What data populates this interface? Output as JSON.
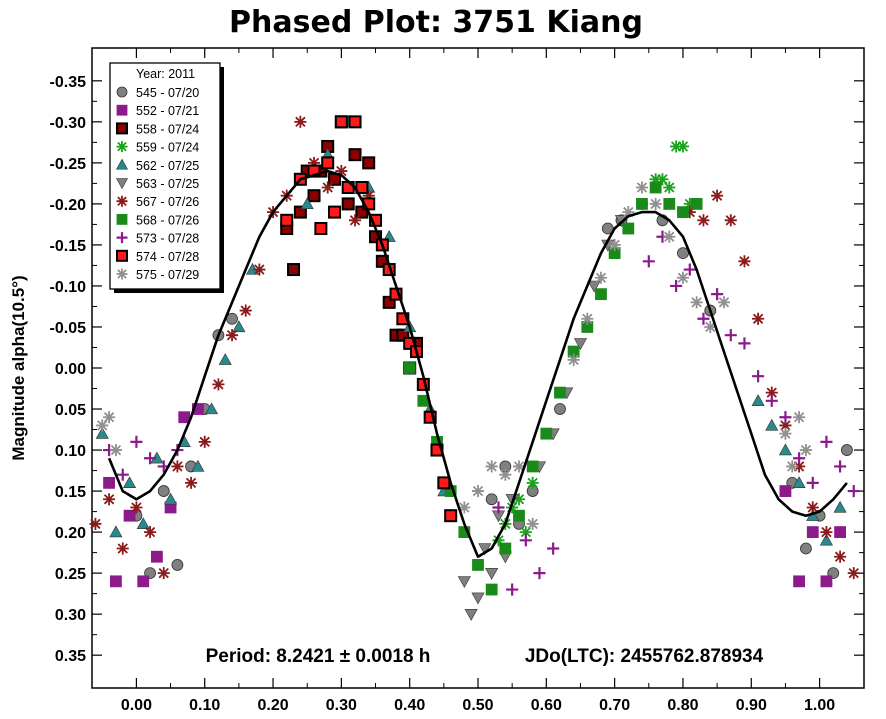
{
  "chart_data": {
    "type": "scatter",
    "title": "Phased Plot: 3751 Kiang",
    "ylabel": "Magnitude alpha(10.5°)",
    "xlabel": "",
    "xlim": [
      -0.065,
      1.065
    ],
    "ylim": [
      0.39,
      -0.39
    ],
    "y_inverted": true,
    "x_ticks": [
      "0.00",
      "0.10",
      "0.20",
      "0.30",
      "0.40",
      "0.50",
      "0.60",
      "0.70",
      "0.80",
      "0.90",
      "1.00"
    ],
    "x_tick_values": [
      0,
      0.1,
      0.2,
      0.3,
      0.4,
      0.5,
      0.6,
      0.7,
      0.8,
      0.9,
      1.0
    ],
    "y_ticks": [
      "-0.35",
      "-0.30",
      "-0.25",
      "-0.20",
      "-0.15",
      "-0.10",
      "-0.05",
      "0.00",
      "0.05",
      "0.10",
      "0.15",
      "0.20",
      "0.25",
      "0.30",
      "0.35"
    ],
    "y_tick_values": [
      -0.35,
      -0.3,
      -0.25,
      -0.2,
      -0.15,
      -0.1,
      -0.05,
      0,
      0.05,
      0.1,
      0.15,
      0.2,
      0.25,
      0.3,
      0.35
    ],
    "legend_title": "Year: 2011",
    "legend_position": "top-left",
    "period_text": "Period: 8.2421 ± 0.0018 h",
    "epoch_text": "JDo(LTC): 2455762.878934",
    "series": [
      {
        "name": "545 - 07/20",
        "marker": "circle",
        "color": "#808080",
        "x": [
          0.0,
          0.02,
          0.04,
          0.06,
          0.08,
          0.1,
          0.12,
          0.14,
          0.52,
          0.54,
          0.56,
          0.58,
          0.62,
          0.64,
          0.69,
          0.71,
          0.74,
          0.77,
          0.8,
          0.84,
          0.96,
          0.98,
          1.0,
          1.02,
          1.04
        ],
        "y": [
          0.18,
          0.25,
          0.15,
          0.24,
          0.12,
          0.05,
          -0.04,
          -0.06,
          0.16,
          0.12,
          0.19,
          0.15,
          0.05,
          -0.02,
          -0.17,
          -0.18,
          -0.2,
          -0.18,
          -0.14,
          -0.07,
          0.14,
          0.22,
          0.18,
          0.25,
          0.1
        ]
      },
      {
        "name": "552 - 07/21",
        "marker": "square",
        "color": "#8b1a8b",
        "x": [
          -0.04,
          -0.03,
          -0.01,
          0.01,
          0.03,
          0.05,
          0.07,
          0.09,
          0.95,
          0.97,
          0.99,
          1.01,
          1.03
        ],
        "y": [
          0.14,
          0.26,
          0.18,
          0.26,
          0.23,
          0.17,
          0.06,
          0.05,
          0.15,
          0.26,
          0.2,
          0.26,
          0.2
        ]
      },
      {
        "name": "558 - 07/24",
        "marker": "square",
        "color": "#000000",
        "fill": "#8b0000",
        "x": [
          0.22,
          0.23,
          0.24,
          0.25,
          0.26,
          0.27,
          0.28,
          0.29,
          0.3,
          0.31,
          0.32,
          0.33,
          0.34,
          0.35,
          0.36,
          0.37,
          0.38,
          0.39,
          0.4,
          0.41
        ],
        "y": [
          -0.17,
          -0.12,
          -0.19,
          -0.24,
          -0.21,
          -0.24,
          -0.27,
          -0.23,
          -0.3,
          -0.2,
          -0.26,
          -0.19,
          -0.25,
          -0.16,
          -0.13,
          -0.08,
          -0.04,
          -0.04,
          0.0,
          -0.03
        ]
      },
      {
        "name": "559 - 07/24",
        "marker": "asterisk",
        "color": "#1aa31a",
        "x": [
          0.53,
          0.54,
          0.55,
          0.56,
          0.57,
          0.58,
          0.76,
          0.77,
          0.78,
          0.79,
          0.8,
          0.81
        ],
        "y": [
          0.21,
          0.19,
          0.17,
          0.16,
          0.2,
          0.14,
          -0.23,
          -0.23,
          -0.22,
          -0.27,
          -0.27,
          -0.2
        ]
      },
      {
        "name": "562 - 07/25",
        "marker": "triangle-up",
        "color": "#2a8a8a",
        "x": [
          -0.05,
          -0.03,
          -0.01,
          0.01,
          0.03,
          0.05,
          0.07,
          0.09,
          0.11,
          0.13,
          0.15,
          0.17,
          0.25,
          0.28,
          0.31,
          0.34,
          0.37,
          0.4,
          0.43,
          0.45,
          0.91,
          0.93,
          0.95,
          0.97,
          0.99,
          1.01,
          1.03
        ],
        "y": [
          0.08,
          0.2,
          0.14,
          0.19,
          0.11,
          0.16,
          0.09,
          0.12,
          0.05,
          -0.01,
          -0.05,
          -0.12,
          -0.2,
          -0.26,
          -0.3,
          -0.22,
          -0.16,
          -0.05,
          0.05,
          0.15,
          0.04,
          0.07,
          0.1,
          0.14,
          0.18,
          0.21,
          0.17
        ]
      },
      {
        "name": "563 - 07/25",
        "marker": "triangle-down",
        "color": "#808080",
        "x": [
          0.48,
          0.49,
          0.5,
          0.51,
          0.52,
          0.53,
          0.54,
          0.55,
          0.59,
          0.61,
          0.63,
          0.65,
          0.67,
          0.69,
          0.71
        ],
        "y": [
          0.26,
          0.3,
          0.28,
          0.22,
          0.25,
          0.18,
          0.23,
          0.16,
          0.12,
          0.08,
          0.03,
          -0.03,
          -0.1,
          -0.15,
          -0.18
        ]
      },
      {
        "name": "567 - 07/26",
        "marker": "asterisk",
        "color": "#8b1a1a",
        "x": [
          -0.06,
          -0.04,
          -0.02,
          0.0,
          0.02,
          0.04,
          0.06,
          0.08,
          0.1,
          0.12,
          0.14,
          0.16,
          0.18,
          0.2,
          0.22,
          0.24,
          0.26,
          0.28,
          0.3,
          0.32,
          0.34,
          0.81,
          0.83,
          0.85,
          0.87,
          0.89,
          0.91,
          0.93,
          0.95,
          0.97,
          0.99,
          1.01,
          1.03,
          1.05
        ],
        "y": [
          0.19,
          0.16,
          0.22,
          0.17,
          0.2,
          0.25,
          0.12,
          0.14,
          0.09,
          0.02,
          -0.04,
          -0.07,
          -0.12,
          -0.19,
          -0.21,
          -0.3,
          -0.25,
          -0.22,
          -0.24,
          -0.18,
          -0.21,
          -0.19,
          -0.18,
          -0.21,
          -0.18,
          -0.13,
          -0.06,
          0.03,
          0.07,
          0.12,
          0.17,
          0.2,
          0.23,
          0.25
        ]
      },
      {
        "name": "568 - 07/26",
        "marker": "square",
        "color": "#1a8a1a",
        "x": [
          0.4,
          0.42,
          0.44,
          0.46,
          0.48,
          0.5,
          0.52,
          0.54,
          0.56,
          0.58,
          0.6,
          0.62,
          0.64,
          0.66,
          0.68,
          0.7,
          0.72,
          0.74,
          0.76,
          0.78,
          0.8,
          0.82
        ],
        "y": [
          0.0,
          0.04,
          0.09,
          0.15,
          0.2,
          0.24,
          0.27,
          0.22,
          0.18,
          0.12,
          0.08,
          0.03,
          -0.02,
          -0.05,
          -0.09,
          -0.14,
          -0.17,
          -0.2,
          -0.22,
          -0.2,
          -0.19,
          -0.2
        ]
      },
      {
        "name": "573 - 07/28",
        "marker": "plus",
        "color": "#8b1a8b",
        "x": [
          -0.04,
          -0.02,
          0.0,
          0.02,
          0.04,
          0.06,
          0.53,
          0.55,
          0.57,
          0.59,
          0.61,
          0.75,
          0.77,
          0.79,
          0.81,
          0.83,
          0.85,
          0.87,
          0.89,
          0.91,
          0.93,
          0.95,
          0.97,
          0.99,
          1.01,
          1.03,
          1.05
        ],
        "y": [
          0.1,
          0.13,
          0.09,
          0.11,
          0.12,
          0.1,
          0.17,
          0.27,
          0.21,
          0.25,
          0.22,
          -0.13,
          -0.16,
          -0.1,
          -0.12,
          -0.06,
          -0.09,
          -0.04,
          -0.03,
          0.01,
          0.04,
          0.06,
          0.11,
          0.14,
          0.09,
          0.12,
          0.15
        ]
      },
      {
        "name": "574 - 07/28",
        "marker": "square",
        "color": "#000000",
        "fill": "#ff1a1a",
        "x": [
          0.22,
          0.24,
          0.26,
          0.27,
          0.28,
          0.29,
          0.3,
          0.31,
          0.32,
          0.33,
          0.34,
          0.35,
          0.36,
          0.37,
          0.38,
          0.39,
          0.4,
          0.41,
          0.42,
          0.43,
          0.44,
          0.45,
          0.46
        ],
        "y": [
          -0.18,
          -0.23,
          -0.24,
          -0.17,
          -0.25,
          -0.19,
          -0.3,
          -0.22,
          -0.3,
          -0.22,
          -0.2,
          -0.18,
          -0.15,
          -0.12,
          -0.09,
          -0.06,
          -0.03,
          -0.02,
          0.02,
          0.06,
          0.1,
          0.14,
          0.18
        ]
      },
      {
        "name": "575 - 07/29",
        "marker": "asterisk",
        "color": "#909090",
        "x": [
          -0.05,
          -0.04,
          -0.03,
          0.48,
          0.5,
          0.52,
          0.54,
          0.56,
          0.58,
          0.64,
          0.66,
          0.68,
          0.7,
          0.72,
          0.74,
          0.76,
          0.78,
          0.8,
          0.82,
          0.84,
          0.86,
          0.95,
          0.96,
          0.97,
          0.98
        ],
        "y": [
          0.07,
          0.06,
          0.1,
          0.17,
          0.15,
          0.12,
          0.13,
          0.12,
          0.19,
          -0.01,
          -0.06,
          -0.11,
          -0.15,
          -0.19,
          -0.22,
          -0.2,
          -0.16,
          -0.11,
          -0.08,
          -0.05,
          -0.08,
          0.08,
          0.12,
          0.06,
          0.1
        ]
      }
    ],
    "fit_curve": {
      "color": "#000000",
      "x": [
        -0.04,
        -0.02,
        0.0,
        0.02,
        0.04,
        0.06,
        0.08,
        0.1,
        0.12,
        0.14,
        0.16,
        0.18,
        0.2,
        0.22,
        0.24,
        0.26,
        0.28,
        0.3,
        0.32,
        0.34,
        0.36,
        0.38,
        0.4,
        0.42,
        0.44,
        0.46,
        0.48,
        0.5,
        0.52,
        0.54,
        0.56,
        0.58,
        0.6,
        0.62,
        0.64,
        0.66,
        0.68,
        0.7,
        0.72,
        0.74,
        0.76,
        0.78,
        0.8,
        0.82,
        0.84,
        0.86,
        0.88,
        0.9,
        0.92,
        0.94,
        0.96,
        0.98,
        1.0,
        1.02,
        1.04
      ],
      "y": [
        0.11,
        0.15,
        0.16,
        0.15,
        0.13,
        0.1,
        0.06,
        0.01,
        -0.04,
        -0.08,
        -0.12,
        -0.16,
        -0.19,
        -0.21,
        -0.23,
        -0.235,
        -0.24,
        -0.235,
        -0.22,
        -0.19,
        -0.15,
        -0.1,
        -0.05,
        0.01,
        0.08,
        0.14,
        0.19,
        0.23,
        0.22,
        0.19,
        0.14,
        0.09,
        0.04,
        -0.01,
        -0.06,
        -0.1,
        -0.14,
        -0.17,
        -0.185,
        -0.19,
        -0.19,
        -0.18,
        -0.16,
        -0.12,
        -0.07,
        -0.02,
        0.03,
        0.08,
        0.13,
        0.16,
        0.175,
        0.18,
        0.175,
        0.16,
        0.14
      ]
    }
  }
}
